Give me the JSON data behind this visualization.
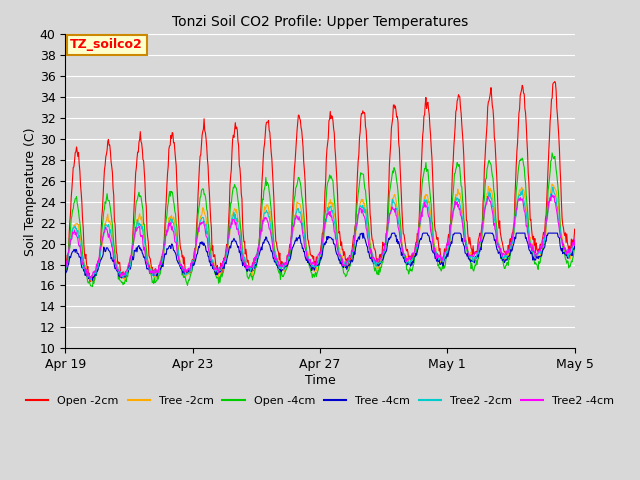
{
  "title": "Tonzi Soil CO2 Profile: Upper Temperatures",
  "xlabel": "Time",
  "ylabel": "Soil Temperature (C)",
  "ylim": [
    10,
    40
  ],
  "background_color": "#d8d8d8",
  "plot_bg_color": "#d8d8d8",
  "annotation_label": "TZ_soilco2",
  "annotation_bg": "#ffffcc",
  "annotation_border": "#cc8800",
  "series": [
    {
      "label": "Open -2cm",
      "color": "#ff0000"
    },
    {
      "label": "Tree -2cm",
      "color": "#ffaa00"
    },
    {
      "label": "Open -4cm",
      "color": "#00cc00"
    },
    {
      "label": "Tree -4cm",
      "color": "#0000cc"
    },
    {
      "label": "Tree2 -2cm",
      "color": "#00cccc"
    },
    {
      "label": "Tree2 -4cm",
      "color": "#ff00ff"
    }
  ],
  "x_tick_labels": [
    "Apr 19",
    "Apr 23",
    "Apr 27",
    "May 1",
    "May 5"
  ],
  "x_tick_positions": [
    0,
    4,
    8,
    12,
    16
  ],
  "num_days": 17,
  "points_per_day": 48,
  "figsize": [
    6.4,
    4.8
  ],
  "dpi": 100
}
